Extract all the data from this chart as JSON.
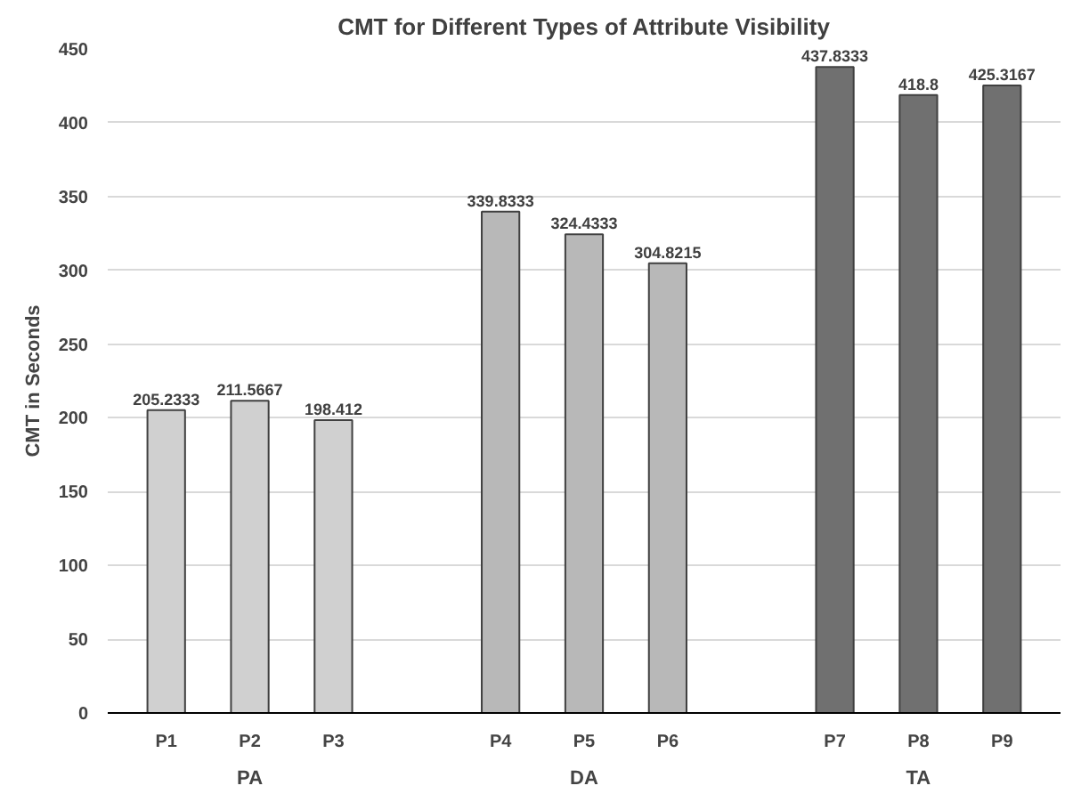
{
  "chart_data": {
    "type": "bar",
    "title": "CMT for Different Types of Attribute Visibility",
    "ylabel": "CMT in Seconds",
    "categories": [
      "P1",
      "P2",
      "P3",
      null,
      "P4",
      "P5",
      "P6",
      null,
      "P7",
      "P8",
      "P9"
    ],
    "values": [
      205.2333,
      211.5667,
      198.412,
      null,
      339.8333,
      324.4333,
      304.8215,
      null,
      437.8333,
      418.8,
      425.3167
    ],
    "colors": [
      "#d0d0d0",
      "#d0d0d0",
      "#d0d0d0",
      null,
      "#b8b8b8",
      "#b8b8b8",
      "#b8b8b8",
      null,
      "#707070",
      "#707070",
      "#707070"
    ],
    "annotations": [
      "PA",
      "DA",
      "TA"
    ],
    "ylim": [
      0,
      450
    ],
    "yticks": [
      0,
      50,
      100,
      150,
      200,
      250,
      300,
      350,
      400,
      450
    ],
    "grid": "y",
    "data_labels": true
  }
}
